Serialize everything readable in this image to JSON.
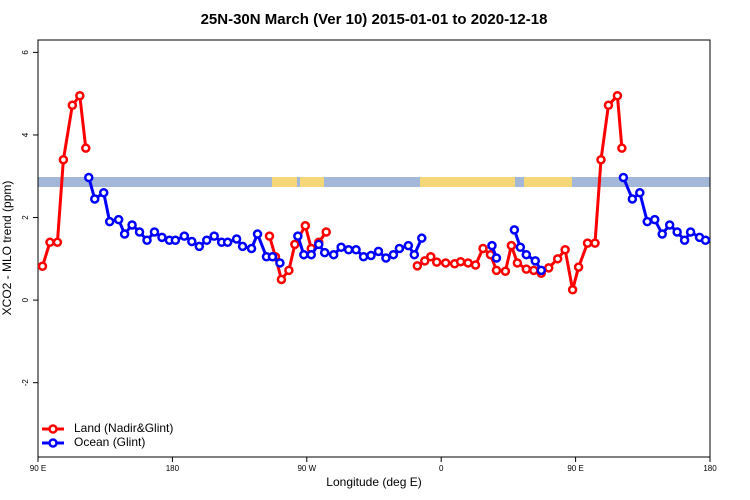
{
  "chart_data": {
    "type": "line",
    "title": "25N-30N March (Ver 10)   2015-01-01 to 2020-12-18",
    "x_label": "Longitude (deg E)",
    "y_label": "XCO2 - MLO trend (ppm)",
    "xlim": [
      90,
      540
    ],
    "xticks": [
      {
        "value": 90,
        "label": "90 E"
      },
      180,
      {
        "value": 270,
        "label": "90 W"
      },
      {
        "value": 360,
        "label": "0"
      },
      {
        "value": 450,
        "label": "90 E"
      },
      {
        "value": 540,
        "label": "180"
      }
    ],
    "ylim": [
      -3.8,
      6.3
    ],
    "yticks": [
      -2,
      0,
      2,
      4,
      6
    ],
    "grid": false,
    "legend": "bottom-left",
    "series": [
      {
        "name": "Land (Nadir&Glint)",
        "color": "#ff0000",
        "x": [
          93,
          98,
          103,
          107,
          113,
          118,
          122,
          null,
          245,
          249,
          253,
          258,
          262,
          269,
          273,
          278,
          283,
          null,
          344,
          349,
          353,
          357,
          363,
          369,
          373,
          378,
          383,
          388,
          393,
          397,
          403,
          407,
          411,
          417,
          422,
          427,
          432,
          438,
          443,
          448,
          452,
          458,
          463,
          467,
          472,
          478,
          481
        ],
        "values": [
          0.82,
          1.4,
          1.4,
          3.4,
          4.72,
          4.95,
          3.68,
          null,
          1.55,
          1.05,
          0.5,
          0.72,
          1.35,
          1.8,
          1.25,
          1.4,
          1.65,
          null,
          0.83,
          0.95,
          1.05,
          0.92,
          0.9,
          0.88,
          0.93,
          0.9,
          0.85,
          1.25,
          1.1,
          0.72,
          0.7,
          1.32,
          0.9,
          0.75,
          0.72,
          0.65,
          0.78,
          1.0,
          1.22,
          0.25,
          0.8,
          1.38,
          1.38,
          3.4,
          4.72,
          4.95,
          3.68
        ]
      },
      {
        "name": "Ocean (Glint)",
        "color": "#0000ff",
        "x": [
          124,
          128,
          134,
          138,
          144,
          148,
          153,
          158,
          163,
          168,
          173,
          178,
          182,
          188,
          193,
          198,
          203,
          208,
          213,
          217,
          223,
          227,
          233,
          237,
          243,
          247,
          252,
          null,
          264,
          268,
          273,
          278,
          282,
          288,
          293,
          298,
          303,
          308,
          313,
          318,
          323,
          328,
          332,
          338,
          342,
          347,
          null,
          394,
          397,
          null,
          409,
          413,
          417,
          423,
          427,
          null,
          482,
          488,
          493,
          498,
          503,
          508,
          513,
          518,
          523,
          527,
          533,
          537
        ],
        "values": [
          2.97,
          2.45,
          2.6,
          1.9,
          1.95,
          1.6,
          1.82,
          1.65,
          1.45,
          1.65,
          1.52,
          1.45,
          1.45,
          1.55,
          1.42,
          1.3,
          1.45,
          1.55,
          1.4,
          1.4,
          1.48,
          1.3,
          1.25,
          1.6,
          1.05,
          1.05,
          0.9,
          null,
          1.55,
          1.1,
          1.1,
          1.35,
          1.15,
          1.1,
          1.28,
          1.22,
          1.22,
          1.05,
          1.08,
          1.18,
          1.02,
          1.1,
          1.25,
          1.32,
          1.1,
          1.5,
          null,
          1.32,
          1.02,
          null,
          1.7,
          1.28,
          1.1,
          0.95,
          0.72,
          null,
          2.97,
          2.45,
          2.6,
          1.9,
          1.95,
          1.6,
          1.82,
          1.65,
          1.45,
          1.65,
          1.52,
          1.45
        ]
      }
    ]
  }
}
